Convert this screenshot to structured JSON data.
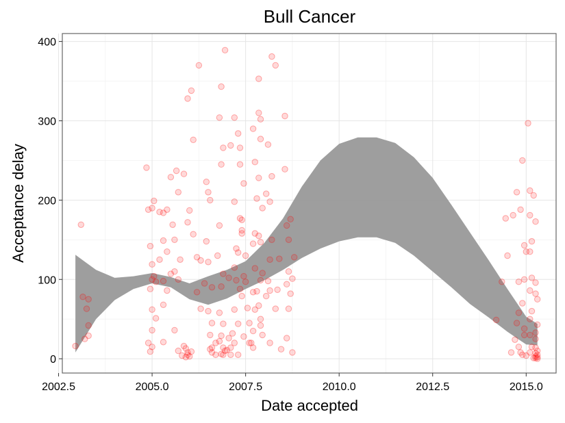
{
  "chart_data": {
    "type": "scatter",
    "title": "Bull Cancer",
    "xlabel": "Date accepted",
    "ylabel": "Acceptance delay",
    "xlim": [
      2002.6,
      2015.8
    ],
    "ylim": [
      -18,
      410
    ],
    "grid": true,
    "x_ticks": [
      2002.5,
      2005.0,
      2007.5,
      2010.0,
      2012.5,
      2015.0
    ],
    "x_tick_labels": [
      "2002.5",
      "2005.0",
      "2007.5",
      "2010.0",
      "2012.5",
      "2015.0"
    ],
    "y_ticks": [
      0,
      100,
      200,
      300,
      400
    ],
    "y_tick_labels": [
      "0",
      "100",
      "200",
      "300",
      "400"
    ],
    "point_color": "#ff0000",
    "band_color": "#999999",
    "points": [
      [
        2002.95,
        16
      ],
      [
        2003.1,
        169
      ],
      [
        2003.15,
        78
      ],
      [
        2003.3,
        75
      ],
      [
        2003.3,
        42
      ],
      [
        2003.3,
        29
      ],
      [
        2003.2,
        25
      ],
      [
        2003.25,
        63
      ],
      [
        2004.85,
        241
      ],
      [
        2004.9,
        188
      ],
      [
        2005.0,
        190
      ],
      [
        2005.05,
        199
      ],
      [
        2004.95,
        142
      ],
      [
        2005.0,
        119
      ],
      [
        2005.05,
        104
      ],
      [
        2005.1,
        97
      ],
      [
        2005.0,
        100
      ],
      [
        2004.95,
        88
      ],
      [
        2005.2,
        185
      ],
      [
        2005.3,
        184
      ],
      [
        2005.4,
        188
      ],
      [
        2005.3,
        149
      ],
      [
        2005.4,
        135
      ],
      [
        2005.2,
        125
      ],
      [
        2005.3,
        98
      ],
      [
        2005.4,
        86
      ],
      [
        2005.3,
        68
      ],
      [
        2005.0,
        62
      ],
      [
        2005.1,
        51
      ],
      [
        2005.0,
        36
      ],
      [
        2004.9,
        20
      ],
      [
        2005.0,
        15
      ],
      [
        2004.95,
        9
      ],
      [
        2005.3,
        21
      ],
      [
        2005.5,
        229
      ],
      [
        2005.65,
        237
      ],
      [
        2005.7,
        210
      ],
      [
        2005.85,
        233
      ],
      [
        2005.55,
        169
      ],
      [
        2005.6,
        150
      ],
      [
        2005.75,
        125
      ],
      [
        2005.6,
        110
      ],
      [
        2005.5,
        107
      ],
      [
        2005.7,
        100
      ],
      [
        2005.6,
        36
      ],
      [
        2005.7,
        10
      ],
      [
        2005.8,
        4
      ],
      [
        2005.85,
        16
      ],
      [
        2005.9,
        13
      ],
      [
        2005.95,
        8
      ],
      [
        2005.95,
        5
      ],
      [
        2005.9,
        2
      ],
      [
        2006.0,
        3
      ],
      [
        2006.05,
        9
      ],
      [
        2005.95,
        328
      ],
      [
        2006.05,
        338
      ],
      [
        2006.1,
        276
      ],
      [
        2006.0,
        187
      ],
      [
        2005.95,
        172
      ],
      [
        2006.1,
        157
      ],
      [
        2006.2,
        128
      ],
      [
        2006.3,
        124
      ],
      [
        2006.4,
        95
      ],
      [
        2006.2,
        84
      ],
      [
        2006.3,
        63
      ],
      [
        2006.25,
        370
      ],
      [
        2006.45,
        223
      ],
      [
        2006.5,
        210
      ],
      [
        2006.55,
        200
      ],
      [
        2006.45,
        148
      ],
      [
        2006.5,
        122
      ],
      [
        2006.6,
        90
      ],
      [
        2006.5,
        60
      ],
      [
        2006.6,
        45
      ],
      [
        2006.55,
        30
      ],
      [
        2006.7,
        20
      ],
      [
        2006.55,
        12
      ],
      [
        2006.6,
        8
      ],
      [
        2006.7,
        5
      ],
      [
        2006.6,
        14
      ],
      [
        2006.85,
        343
      ],
      [
        2006.8,
        304
      ],
      [
        2006.85,
        245
      ],
      [
        2006.9,
        266
      ],
      [
        2006.8,
        168
      ],
      [
        2006.75,
        130
      ],
      [
        2006.9,
        107
      ],
      [
        2006.85,
        91
      ],
      [
        2006.8,
        58
      ],
      [
        2006.9,
        44
      ],
      [
        2006.85,
        29
      ],
      [
        2006.8,
        22
      ],
      [
        2006.9,
        14
      ],
      [
        2006.95,
        10
      ],
      [
        2006.85,
        6
      ],
      [
        2006.9,
        5
      ],
      [
        2006.95,
        389
      ],
      [
        2007.1,
        269
      ],
      [
        2007.2,
        304
      ],
      [
        2007.3,
        284
      ],
      [
        2007.35,
        245
      ],
      [
        2007.2,
        198
      ],
      [
        2007.35,
        177
      ],
      [
        2007.4,
        175
      ],
      [
        2007.4,
        162
      ],
      [
        2007.25,
        139
      ],
      [
        2007.3,
        134
      ],
      [
        2007.2,
        115
      ],
      [
        2007.05,
        102
      ],
      [
        2007.25,
        99
      ],
      [
        2007.35,
        88
      ],
      [
        2007.2,
        62
      ],
      [
        2007.3,
        44
      ],
      [
        2007.15,
        32
      ],
      [
        2007.05,
        26
      ],
      [
        2007.2,
        20
      ],
      [
        2007.1,
        14
      ],
      [
        2007.0,
        11
      ],
      [
        2007.1,
        5
      ],
      [
        2007.3,
        5
      ],
      [
        2007.35,
        266
      ],
      [
        2007.45,
        221
      ],
      [
        2007.4,
        158
      ],
      [
        2007.5,
        130
      ],
      [
        2007.45,
        104
      ],
      [
        2007.5,
        97
      ],
      [
        2007.4,
        79
      ],
      [
        2007.55,
        64
      ],
      [
        2007.6,
        45
      ],
      [
        2007.45,
        28
      ],
      [
        2007.6,
        20
      ],
      [
        2007.65,
        20
      ],
      [
        2007.7,
        290
      ],
      [
        2007.75,
        248
      ],
      [
        2007.8,
        202
      ],
      [
        2007.75,
        158
      ],
      [
        2007.7,
        145
      ],
      [
        2007.75,
        114
      ],
      [
        2007.7,
        84
      ],
      [
        2007.75,
        62
      ],
      [
        2007.7,
        35
      ],
      [
        2007.7,
        14
      ],
      [
        2007.85,
        353
      ],
      [
        2007.85,
        310
      ],
      [
        2007.9,
        302
      ],
      [
        2007.9,
        277
      ],
      [
        2007.85,
        228
      ],
      [
        2007.95,
        190
      ],
      [
        2007.85,
        155
      ],
      [
        2007.9,
        147
      ],
      [
        2007.95,
        108
      ],
      [
        2007.9,
        99
      ],
      [
        2007.8,
        85
      ],
      [
        2007.85,
        67
      ],
      [
        2007.9,
        50
      ],
      [
        2007.9,
        42
      ],
      [
        2007.95,
        30
      ],
      [
        2008.05,
        208
      ],
      [
        2008.1,
        270
      ],
      [
        2008.2,
        381
      ],
      [
        2008.3,
        370
      ],
      [
        2008.2,
        230
      ],
      [
        2008.15,
        198
      ],
      [
        2008.2,
        150
      ],
      [
        2008.15,
        125
      ],
      [
        2008.1,
        98
      ],
      [
        2008.15,
        86
      ],
      [
        2008.05,
        79
      ],
      [
        2008.15,
        20
      ],
      [
        2008.35,
        87
      ],
      [
        2008.3,
        63
      ],
      [
        2008.4,
        126
      ],
      [
        2008.45,
        12
      ],
      [
        2008.55,
        306
      ],
      [
        2008.55,
        239
      ],
      [
        2008.6,
        168
      ],
      [
        2008.65,
        150
      ],
      [
        2008.7,
        176
      ],
      [
        2008.65,
        110
      ],
      [
        2008.6,
        94
      ],
      [
        2008.7,
        82
      ],
      [
        2008.75,
        101
      ],
      [
        2008.65,
        63
      ],
      [
        2008.6,
        26
      ],
      [
        2008.75,
        8
      ],
      [
        2008.8,
        128
      ],
      [
        2014.2,
        49
      ],
      [
        2014.35,
        97
      ],
      [
        2014.45,
        177
      ],
      [
        2014.5,
        130
      ],
      [
        2014.6,
        8
      ],
      [
        2014.65,
        181
      ],
      [
        2014.75,
        210
      ],
      [
        2014.85,
        188
      ],
      [
        2014.8,
        97
      ],
      [
        2014.8,
        58
      ],
      [
        2014.75,
        45
      ],
      [
        2014.7,
        24
      ],
      [
        2014.8,
        15
      ],
      [
        2014.85,
        8
      ],
      [
        2014.9,
        250
      ],
      [
        2014.95,
        143
      ],
      [
        2015.0,
        135
      ],
      [
        2014.95,
        100
      ],
      [
        2014.9,
        70
      ],
      [
        2014.95,
        38
      ],
      [
        2014.95,
        30
      ],
      [
        2014.9,
        5
      ],
      [
        2015.0,
        4
      ],
      [
        2015.05,
        297
      ],
      [
        2015.1,
        212
      ],
      [
        2015.1,
        181
      ],
      [
        2015.15,
        148
      ],
      [
        2015.1,
        135
      ],
      [
        2015.15,
        102
      ],
      [
        2015.1,
        86
      ],
      [
        2015.15,
        60
      ],
      [
        2015.1,
        50
      ],
      [
        2015.1,
        30
      ],
      [
        2015.15,
        15
      ],
      [
        2015.1,
        8
      ],
      [
        2015.2,
        206
      ],
      [
        2015.25,
        173
      ],
      [
        2015.25,
        96
      ],
      [
        2015.25,
        82
      ],
      [
        2015.3,
        75
      ],
      [
        2015.3,
        43
      ],
      [
        2015.25,
        33
      ],
      [
        2015.25,
        25
      ],
      [
        2015.25,
        14
      ],
      [
        2015.3,
        10
      ],
      [
        2015.25,
        7
      ],
      [
        2015.3,
        5
      ],
      [
        2015.25,
        3
      ],
      [
        2015.3,
        2
      ],
      [
        2015.2,
        1
      ],
      [
        2015.25,
        1
      ],
      [
        2015.3,
        0
      ]
    ],
    "band": {
      "x": [
        2002.95,
        2003.5,
        2004.0,
        2004.5,
        2005.0,
        2005.5,
        2006.0,
        2006.5,
        2007.0,
        2007.5,
        2008.0,
        2008.5,
        2009.0,
        2009.5,
        2010.0,
        2010.5,
        2011.0,
        2011.5,
        2012.0,
        2012.5,
        2013.0,
        2013.5,
        2014.0,
        2014.5,
        2015.0,
        2015.3
      ],
      "upper": [
        131,
        112,
        102,
        104,
        108,
        103,
        95,
        104,
        112,
        123,
        146,
        177,
        217,
        250,
        271,
        279,
        279,
        272,
        254,
        228,
        194,
        159,
        124,
        88,
        53,
        44
      ],
      "lower": [
        8,
        50,
        74,
        88,
        95,
        90,
        75,
        68,
        76,
        88,
        99,
        112,
        127,
        139,
        148,
        153,
        153,
        146,
        130,
        110,
        90,
        69,
        52,
        34,
        18,
        17
      ]
    }
  }
}
